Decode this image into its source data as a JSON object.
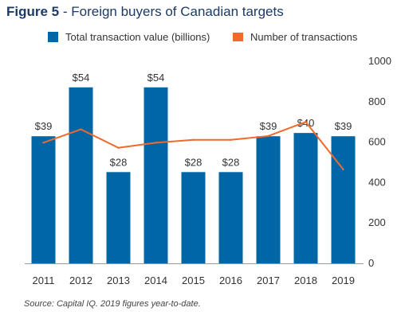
{
  "figure": {
    "label": "Figure 5",
    "separator": " - ",
    "title": "Foreign buyers of Canadian targets"
  },
  "source": "Source: Capital IQ. 2019 figures year-to-date.",
  "colors": {
    "bar": "#0066a6",
    "line": "#ee6a2d",
    "title": "#1b3a66",
    "text": "#333333",
    "axis": "#999999"
  },
  "chart_data": {
    "type": "bar",
    "title": "Foreign buyers of Canadian targets",
    "categories": [
      "2011",
      "2012",
      "2013",
      "2014",
      "2015",
      "2016",
      "2017",
      "2018",
      "2019"
    ],
    "series": [
      {
        "name": "Total transaction value (billions)",
        "type": "bar",
        "values": [
          39,
          54,
          28,
          54,
          28,
          28,
          39,
          40,
          39
        ],
        "labels": [
          "$39",
          "$54",
          "$28",
          "$54",
          "$28",
          "$28",
          "$39",
          "$40",
          "$39"
        ]
      },
      {
        "name": "Number of transactions",
        "type": "line",
        "axis": "right",
        "values": [
          597,
          663,
          572,
          597,
          611,
          611,
          630,
          700,
          465
        ]
      }
    ],
    "y_right": {
      "ylim": [
        0,
        1000
      ],
      "ticks": [
        0,
        200,
        400,
        600,
        800,
        1000
      ]
    },
    "bar_ylim": [
      0,
      62
    ],
    "legend_position": "top",
    "grid": false
  }
}
